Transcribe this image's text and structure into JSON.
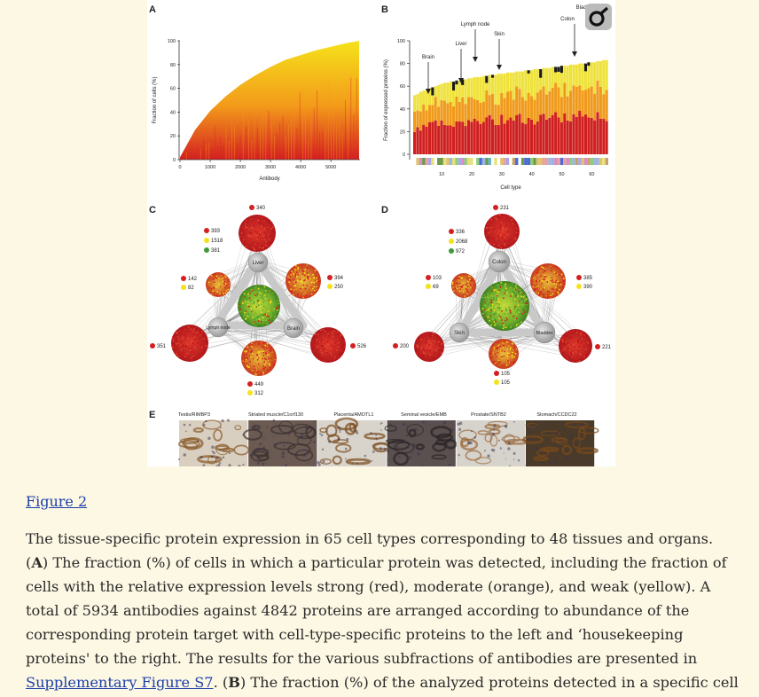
{
  "figure": {
    "panels": {
      "a": "A",
      "b": "B",
      "c": "C",
      "d": "D",
      "e": "E"
    },
    "panel_a": {
      "ylabel": "Fraction of cells (%)",
      "xlabel": "Antibody",
      "yticks": [
        "0",
        "20",
        "40",
        "60",
        "80",
        "100"
      ],
      "xticks": [
        "0",
        "1000",
        "2000",
        "3000",
        "4000",
        "5000"
      ],
      "ylim": [
        0,
        100
      ],
      "xlim": [
        0,
        5934
      ],
      "colors": {
        "strong": "#d42020",
        "moderate": "#f39a1a",
        "weak": "#f5e21a"
      }
    },
    "panel_b": {
      "ylabel": "Fraction of expressed proteins (%)",
      "xlabel": "Cell type",
      "yticks": [
        "0",
        "20",
        "40",
        "60",
        "80",
        "100"
      ],
      "xticks": [
        "10",
        "20",
        "30",
        "40",
        "50",
        "60"
      ],
      "ylim": [
        0,
        100
      ],
      "annotations": [
        "Brain",
        "Lymph node",
        "Liver",
        "Skin",
        "Colon",
        "Bladder"
      ]
    },
    "panel_c": {
      "nodes": [
        "Liver",
        "Brain",
        "Lymph node"
      ],
      "counts": {
        "top": "340",
        "left": "351",
        "right": "526",
        "bottom_red": "449",
        "bottom_yellow": "312",
        "liver_red": "393",
        "liver_yellow": "1518",
        "liver_green": "381",
        "lymph_red": "142",
        "lymph_yellow": "82",
        "brain_red": "394",
        "brain_yellow": "250"
      }
    },
    "panel_d": {
      "nodes": [
        "Colon",
        "Skin",
        "Bladder"
      ],
      "counts": {
        "top": "231",
        "left": "200",
        "right": "221",
        "bottom_red": "105",
        "bottom_yellow": "105",
        "colon_red": "336",
        "colon_yellow": "2068",
        "colon_green": "972",
        "skin_red": "103",
        "skin_yellow": "69",
        "bladder_red": "385",
        "bladder_yellow": "390"
      }
    },
    "panel_e": {
      "labels": [
        "Testis/RIMBP3",
        "Striated muscle/C1orf130",
        "Placenta/AMOTL1",
        "Seminal vesicle/EMB",
        "Prostate/SNTB2",
        "Stomach/CCDC22"
      ]
    }
  },
  "chart_data": [
    {
      "type": "area",
      "title": "",
      "xlabel": "Antibody",
      "ylabel": "Fraction of cells (%)",
      "xlim": [
        0,
        5934
      ],
      "ylim": [
        0,
        100
      ],
      "x": [
        0,
        500,
        1000,
        1500,
        2000,
        2500,
        3000,
        3500,
        4000,
        4500,
        5000,
        5500,
        5934
      ],
      "series": [
        {
          "name": "",
          "values": [
            2,
            25,
            41,
            53,
            63,
            71,
            78,
            84,
            88,
            92,
            95,
            98,
            100
          ]
        }
      ]
    },
    {
      "type": "bar",
      "title": "",
      "xlabel": "Cell type",
      "ylabel": "Fraction of expressed proteins (%)",
      "ylim": [
        0,
        100
      ],
      "categories": [
        "1",
        "2",
        "3",
        "4",
        "5",
        "6",
        "7",
        "8",
        "9",
        "10",
        "11",
        "12",
        "13",
        "14",
        "15",
        "16",
        "17",
        "18",
        "19",
        "20",
        "21",
        "22",
        "23",
        "24",
        "25",
        "26",
        "27",
        "28",
        "29",
        "30",
        "31",
        "32",
        "33",
        "34",
        "35",
        "36",
        "37",
        "38",
        "39",
        "40",
        "41",
        "42",
        "43",
        "44",
        "45",
        "46",
        "47",
        "48",
        "49",
        "50",
        "51",
        "52",
        "53",
        "54",
        "55",
        "56",
        "57",
        "58",
        "59",
        "60",
        "61",
        "62",
        "63",
        "64",
        "65"
      ],
      "series": [
        {
          "name": "",
          "values": [
            52,
            53,
            55,
            56,
            57,
            58,
            59,
            60,
            61,
            62,
            63,
            63,
            64,
            64,
            65,
            65,
            66,
            66,
            67,
            67,
            68,
            68,
            68,
            69,
            69,
            70,
            70,
            70,
            71,
            71,
            71,
            72,
            72,
            72,
            73,
            73,
            73,
            74,
            74,
            74,
            75,
            75,
            75,
            76,
            76,
            76,
            77,
            77,
            77,
            78,
            78,
            78,
            79,
            79,
            79,
            80,
            80,
            80,
            81,
            81,
            81,
            82,
            82,
            83,
            83
          ]
        }
      ]
    }
  ],
  "caption": {
    "link": "Figure 2",
    "text1": "The tissue-specific protein expression in 65 cell types corresponding to 48 tissues and organs. (",
    "b1": "A",
    "text2": ") The fraction (%) of cells in which a particular protein was detected, including the fraction of cells with the relative expression levels strong (red), moderate (orange), and weak (yellow). A total of 5934 antibodies against 4842 proteins are arranged according to abundance of the corresponding protein target with cell-type-specific proteins to the left and ‘housekeeping proteins' to the right. The results for the various subfractions of antibodies are presented in ",
    "supp_link": "Supplementary Figure S7",
    "text3": ". (",
    "b2": "B",
    "text4": ") The fraction (%) of the analyzed proteins detected in a specific cell type. Cells are arranged according to the fraction of proteins detected. A bar displaying the"
  }
}
